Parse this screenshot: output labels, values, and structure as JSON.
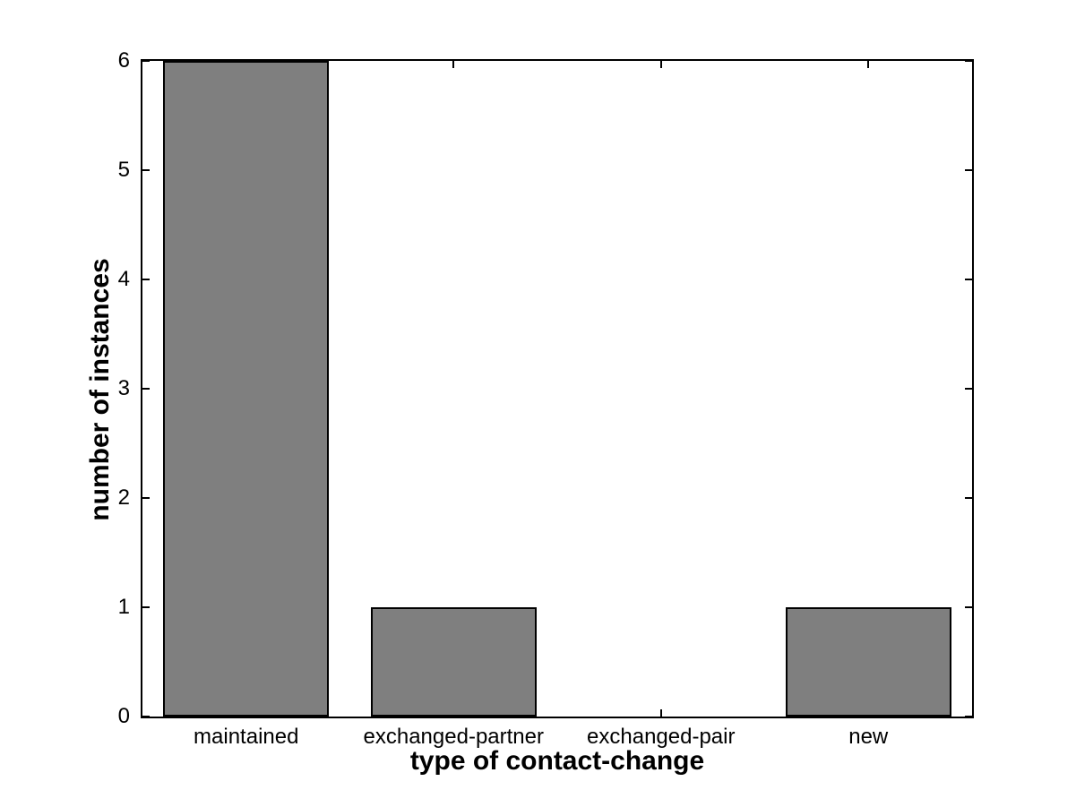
{
  "chart_data": {
    "type": "bar",
    "categories": [
      "maintained",
      "exchanged-partner",
      "exchanged-pair",
      "new"
    ],
    "values": [
      6,
      1,
      0,
      1
    ],
    "xlabel": "type of contact-change",
    "ylabel": "number of instances",
    "ylim": [
      0,
      6
    ],
    "yticks": [
      0,
      1,
      2,
      3,
      4,
      5,
      6
    ],
    "bar_width_fraction": 0.8,
    "bar_fill_color": "#7f7f7f",
    "bar_edge_color": "#000000",
    "axis_color": "#000000",
    "background_color": "#ffffff",
    "grid": false,
    "legend": "none",
    "tick_direction": "in",
    "box": true
  }
}
